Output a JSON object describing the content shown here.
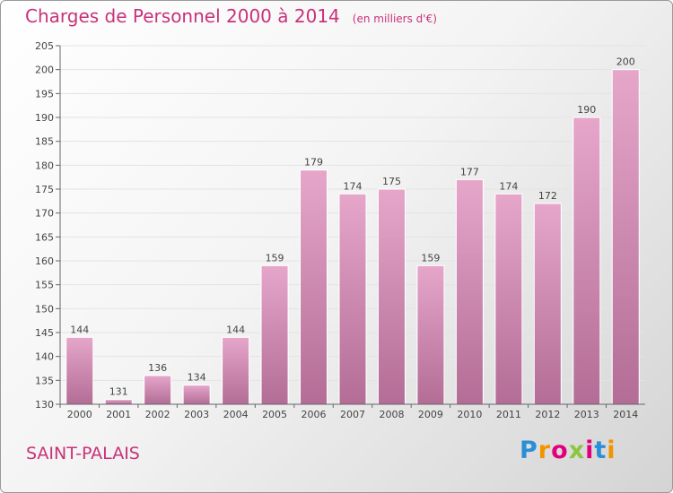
{
  "title": "Charges de Personnel 2000 à 2014",
  "subtitle": "(en milliers d'€)",
  "town": "SAINT-PALAIS",
  "logo": "Proxiti",
  "colors": {
    "accent": "#c8327a",
    "bar_top": "#e6a6ca",
    "bar_bottom": "#b36d96",
    "grid": "#e3e3e3"
  },
  "chart_data": {
    "type": "bar",
    "categories": [
      "2000",
      "2001",
      "2002",
      "2003",
      "2004",
      "2005",
      "2006",
      "2007",
      "2008",
      "2009",
      "2010",
      "2011",
      "2012",
      "2013",
      "2014"
    ],
    "values": [
      144,
      131,
      136,
      134,
      144,
      159,
      179,
      174,
      175,
      159,
      177,
      174,
      172,
      190,
      200
    ],
    "title": "Charges de Personnel 2000 à 2014",
    "subtitle": "(en milliers d'€)",
    "ylim": [
      130,
      205
    ],
    "yticks": [
      130,
      135,
      140,
      145,
      150,
      155,
      160,
      165,
      170,
      175,
      180,
      185,
      190,
      195,
      200,
      205
    ],
    "grid": true
  }
}
